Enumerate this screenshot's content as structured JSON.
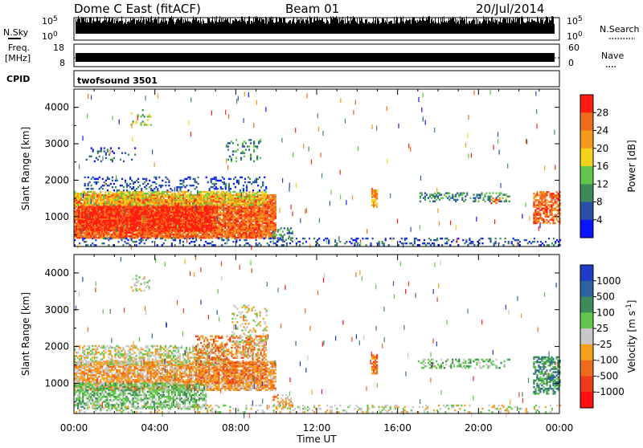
{
  "header": {
    "radar": "Dome C East (fitACF)",
    "beam": "Beam 01",
    "date": "20/Jul/2014"
  },
  "side_labels": {
    "nsky": "N.Sky",
    "nsearch": "N.Search",
    "freq": "Freq.",
    "freq_unit": "[MHz]",
    "nave": "Nave",
    "cpid": "CPID",
    "cpid_value": "twofsound 3501"
  },
  "nsky_panel": {
    "left_ticks": [
      "10^5",
      "10^0"
    ],
    "right_ticks": [
      "10^5",
      "10^0"
    ]
  },
  "freq_panel": {
    "left_ticks": [
      "18",
      "8"
    ],
    "right_ticks": [
      "60",
      "0"
    ]
  },
  "chart_data": [
    {
      "type": "heatmap",
      "name": "power-panel",
      "ylabel": "Slant Range [km]",
      "y_ticks": [
        "1000",
        "2000",
        "3000",
        "4000"
      ],
      "ylim": [
        180,
        4500
      ],
      "x_ticks": [],
      "colorbar": {
        "label": "Power [dB]",
        "tick_labels": [
          "4",
          "8",
          "12",
          "16",
          "20",
          "24",
          "28"
        ],
        "colors": [
          "#0a14ff",
          "#2a4fa8",
          "#3d8a5a",
          "#5fc84a",
          "#f5d21c",
          "#f59b1c",
          "#f06a1c",
          "#ff1e10"
        ]
      },
      "regions": [
        {
          "t0": 0.0,
          "t1": 10.0,
          "r0": 400,
          "r1": 1600,
          "level": 6,
          "density": 0.9
        },
        {
          "t0": 0.2,
          "t1": 7.0,
          "r0": 600,
          "r1": 1300,
          "level": 7,
          "density": 0.8
        },
        {
          "t0": 0.0,
          "t1": 9.5,
          "r0": 1300,
          "r1": 1700,
          "level": 4,
          "density": 0.6
        },
        {
          "t0": 0.5,
          "t1": 9.5,
          "r0": 1700,
          "r1": 2100,
          "level": 1,
          "density": 0.25
        },
        {
          "t0": 0.5,
          "t1": 3.0,
          "r0": 2500,
          "r1": 2900,
          "level": 1,
          "density": 0.15
        },
        {
          "t0": 7.5,
          "t1": 9.2,
          "r0": 2500,
          "r1": 3100,
          "level": 2,
          "density": 0.2
        },
        {
          "t0": 2.8,
          "t1": 3.8,
          "r0": 3500,
          "r1": 3950,
          "level": 3,
          "density": 0.2
        },
        {
          "t0": 9.8,
          "t1": 10.8,
          "r0": 300,
          "r1": 700,
          "level": 2,
          "density": 0.4
        },
        {
          "t0": 14.7,
          "t1": 14.95,
          "r0": 1250,
          "r1": 1750,
          "level": 5,
          "density": 0.8
        },
        {
          "t0": 17.0,
          "t1": 21.5,
          "r0": 1400,
          "r1": 1650,
          "level": 2,
          "density": 0.35
        },
        {
          "t0": 20.6,
          "t1": 21.0,
          "r0": 1350,
          "r1": 1500,
          "level": 6,
          "density": 0.5
        },
        {
          "t0": 22.7,
          "t1": 24.0,
          "r0": 800,
          "r1": 1700,
          "level": 6,
          "density": 0.6
        },
        {
          "t0": 0.0,
          "t1": 24.0,
          "r0": 200,
          "r1": 400,
          "level": 1,
          "density": 0.2
        }
      ]
    },
    {
      "type": "heatmap",
      "name": "velocity-panel",
      "ylabel": "Slant Range [km]",
      "xlabel": "Time UT",
      "y_ticks": [
        "1000",
        "2000",
        "3000",
        "4000"
      ],
      "ylim": [
        180,
        4500
      ],
      "x_ticks": [
        "00:00",
        "04:00",
        "08:00",
        "12:00",
        "16:00",
        "20:00",
        "00:00"
      ],
      "xlim": [
        0,
        24
      ],
      "colorbar": {
        "label": "Velocity [m s^-1]",
        "tick_labels": [
          "1000",
          "500",
          "100",
          "25",
          "-25",
          "-100",
          "-500",
          "-1000"
        ],
        "colors": [
          "#1e3cc8",
          "#2d62a0",
          "#3d8a5a",
          "#5fc84a",
          "#c8c8c8",
          "#f5a01c",
          "#f06a1c",
          "#f03c1c",
          "#ff1010"
        ]
      },
      "regions": [
        {
          "t0": 0.0,
          "t1": 10.0,
          "r0": 800,
          "r1": 1600,
          "level": 5,
          "density": 0.8
        },
        {
          "t0": 0.0,
          "t1": 6.5,
          "r0": 300,
          "r1": 1000,
          "level": 3,
          "density": 0.6
        },
        {
          "t0": 0.0,
          "t1": 7.5,
          "r0": 1500,
          "r1": 2000,
          "level": 4,
          "density": 0.5
        },
        {
          "t0": 6.0,
          "t1": 9.5,
          "r0": 1000,
          "r1": 2300,
          "level": 6,
          "density": 0.4
        },
        {
          "t0": 7.8,
          "t1": 9.5,
          "r0": 1700,
          "r1": 3100,
          "level": 4,
          "density": 0.2
        },
        {
          "t0": 2.8,
          "t1": 3.8,
          "r0": 3500,
          "r1": 3950,
          "level": 4,
          "density": 0.2
        },
        {
          "t0": 9.8,
          "t1": 10.8,
          "r0": 300,
          "r1": 700,
          "level": 5,
          "density": 0.4
        },
        {
          "t0": 14.7,
          "t1": 14.95,
          "r0": 1250,
          "r1": 1750,
          "level": 6,
          "density": 0.8
        },
        {
          "t0": 17.0,
          "t1": 21.5,
          "r0": 1400,
          "r1": 1650,
          "level": 3,
          "density": 0.35
        },
        {
          "t0": 22.7,
          "t1": 24.0,
          "r0": 700,
          "r1": 1700,
          "level": 2,
          "density": 0.6
        },
        {
          "t0": 0.0,
          "t1": 24.0,
          "r0": 200,
          "r1": 400,
          "level": 4,
          "density": 0.2
        }
      ]
    }
  ]
}
